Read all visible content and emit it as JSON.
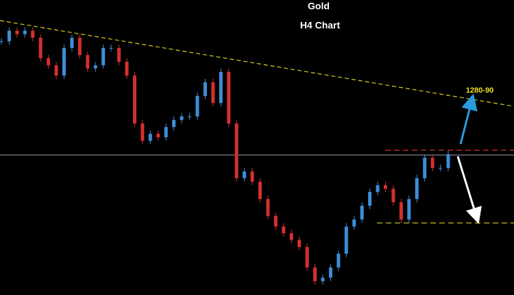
{
  "chart_data": {
    "type": "candlestick",
    "title": "Gold",
    "subtitle": "H4 Chart",
    "annotation": "1280-90",
    "values": [
      1289.5,
      1292.2,
      1291.3,
      1292.2,
      1290.4,
      1285.2,
      1283.4,
      1280.8,
      1287.8,
      1290.4,
      1286.0,
      1282.6,
      1283.4,
      1287.8,
      1287.8,
      1284.3,
      1280.8,
      1268.6,
      1264.2,
      1266.0,
      1265.1,
      1267.7,
      1269.5,
      1270.4,
      1270.4,
      1275.6,
      1279.1,
      1273.8,
      1281.7,
      1268.6,
      1254.7,
      1256.4,
      1253.8,
      1249.4,
      1245.1,
      1242.4,
      1240.7,
      1239.0,
      1237.2,
      1232.0,
      1228.5,
      1229.4,
      1232.0,
      1235.5,
      1242.4,
      1244.2,
      1247.7,
      1251.2,
      1252.9,
      1252.0,
      1248.6,
      1244.2,
      1249.4,
      1254.7,
      1259.9,
      1257.3,
      1257.3,
      1260.8
    ],
    "up_color": "#3d8ed8",
    "down_color": "#d42f2f",
    "ylim": [
      1225,
      1300
    ]
  }
}
